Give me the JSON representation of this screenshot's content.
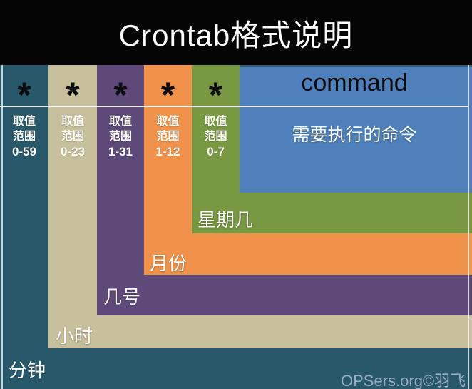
{
  "title": "Crontab格式说明",
  "watermark": "OPSers.org©羽飞",
  "fields": [
    {
      "symbol": "*",
      "scope_line1": "取值",
      "scope_line2": "范围",
      "range": "0-59",
      "label": "分钟",
      "color": "#27596a"
    },
    {
      "symbol": "*",
      "scope_line1": "取值",
      "scope_line2": "范围",
      "range": "0-23",
      "label": "小时",
      "color": "#c8c09c"
    },
    {
      "symbol": "*",
      "scope_line1": "取值",
      "scope_line2": "范围",
      "range": "1-31",
      "label": "几号",
      "color": "#5e4a79"
    },
    {
      "symbol": "*",
      "scope_line1": "取值",
      "scope_line2": "范围",
      "range": "1-12",
      "label": "月份",
      "color": "#f0924a"
    },
    {
      "symbol": "*",
      "scope_line1": "取值",
      "scope_line2": "范围",
      "range": "0-7",
      "label": "星期几",
      "color": "#789841"
    }
  ],
  "command": {
    "header": "command",
    "description": "需要执行的命令",
    "color": "#4e81bc"
  }
}
